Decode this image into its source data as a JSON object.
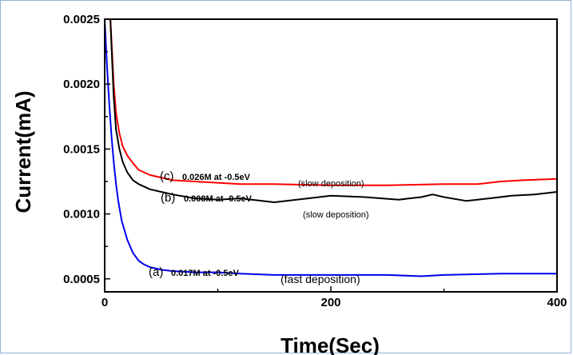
{
  "chart_data": {
    "type": "line",
    "xlabel": "Time(Sec)",
    "ylabel": "Current(mA)",
    "xlim": [
      0,
      400
    ],
    "ylim": [
      0.0004,
      0.0025
    ],
    "x_ticks": [
      "0",
      "200",
      "400"
    ],
    "y_ticks": [
      "0.0005",
      "0.0010",
      "0.0015",
      "0.0020",
      "0.0025"
    ],
    "grid": false,
    "series": [
      {
        "label": "c",
        "color": "#ff0000",
        "x": [
          5,
          8,
          10,
          13,
          16,
          20,
          25,
          30,
          40,
          50,
          60,
          80,
          100,
          120,
          150,
          200,
          250,
          300,
          330,
          350,
          370,
          400
        ],
        "y": [
          0.0025,
          0.002,
          0.00178,
          0.00162,
          0.00152,
          0.00145,
          0.00139,
          0.00134,
          0.0013,
          0.00128,
          0.00126,
          0.00125,
          0.00124,
          0.00123,
          0.00123,
          0.00122,
          0.00122,
          0.00123,
          0.00123,
          0.00125,
          0.00126,
          0.00127
        ]
      },
      {
        "label": "b",
        "color": "#000000",
        "x": [
          5,
          8,
          10,
          13,
          16,
          20,
          25,
          30,
          40,
          50,
          60,
          80,
          100,
          120,
          150,
          180,
          200,
          230,
          260,
          280,
          290,
          300,
          320,
          340,
          360,
          380,
          400
        ],
        "y": [
          0.0025,
          0.0019,
          0.00165,
          0.0015,
          0.0014,
          0.00132,
          0.00126,
          0.00123,
          0.00119,
          0.00117,
          0.00115,
          0.00112,
          0.00111,
          0.00112,
          0.00109,
          0.00112,
          0.00114,
          0.00113,
          0.00111,
          0.00113,
          0.00115,
          0.00113,
          0.0011,
          0.00112,
          0.00114,
          0.00115,
          0.00117
        ]
      },
      {
        "label": "a",
        "color": "#0000ee",
        "x": [
          0,
          2,
          4,
          6,
          8,
          10,
          12,
          15,
          20,
          25,
          30,
          35,
          40,
          50,
          60,
          80,
          100,
          120,
          150,
          200,
          250,
          280,
          300,
          350,
          400
        ],
        "y": [
          0.0025,
          0.00215,
          0.00185,
          0.0016,
          0.0014,
          0.00123,
          0.0011,
          0.00095,
          0.0008,
          0.0007,
          0.00064,
          0.00061,
          0.00059,
          0.00057,
          0.00056,
          0.00055,
          0.00055,
          0.00054,
          0.00053,
          0.00053,
          0.00053,
          0.00052,
          0.00053,
          0.00054,
          0.00054
        ]
      }
    ],
    "annotations": {
      "c": {
        "prefix": "(c)",
        "text": "0.026M at -0.5eV",
        "note": "(slow deposition)"
      },
      "b": {
        "prefix": "(b)",
        "text": "0.008M at -0.5eV",
        "note": "(slow deposition)"
      },
      "a": {
        "prefix": "(a)",
        "text": "0.017M at -0.5eV",
        "note": "(fast deposition)"
      }
    }
  }
}
